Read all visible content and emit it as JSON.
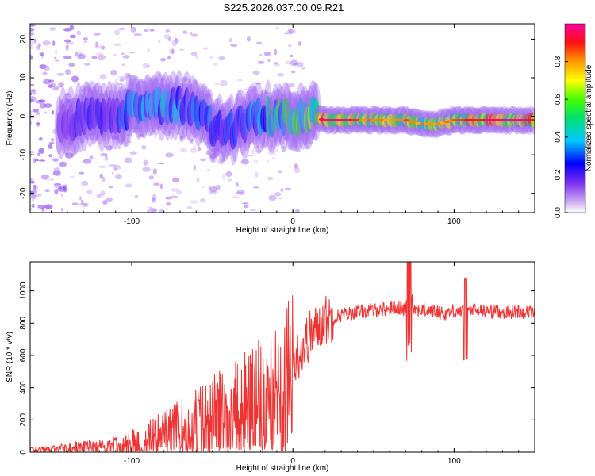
{
  "title": "S225.2026.037.00.09.R21",
  "chart_data": [
    {
      "type": "heatmap",
      "xlabel": "Height of straight line (km)",
      "ylabel": "Frequency (Hz)",
      "xlim": [
        -163,
        150
      ],
      "ylim": [
        -25,
        24
      ],
      "xticks": [
        -100,
        0,
        100
      ],
      "yticks": [
        -20,
        -10,
        0,
        10,
        20
      ],
      "ridge": [
        {
          "x": -140,
          "y": -2,
          "v": 0.2
        },
        {
          "x": -130,
          "y": 0,
          "v": 0.25
        },
        {
          "x": -120,
          "y": 0,
          "v": 0.3
        },
        {
          "x": -110,
          "y": 0,
          "v": 0.3
        },
        {
          "x": -100,
          "y": 2,
          "v": 0.4
        },
        {
          "x": -90,
          "y": 3,
          "v": 0.4
        },
        {
          "x": -80,
          "y": 3,
          "v": 0.45
        },
        {
          "x": -70,
          "y": 3,
          "v": 0.4
        },
        {
          "x": -60,
          "y": 2,
          "v": 0.35
        },
        {
          "x": -50,
          "y": -3,
          "v": 0.35
        },
        {
          "x": -40,
          "y": -4,
          "v": 0.35
        },
        {
          "x": -30,
          "y": -2,
          "v": 0.35
        },
        {
          "x": -20,
          "y": 0,
          "v": 0.45
        },
        {
          "x": -10,
          "y": 0,
          "v": 0.55
        },
        {
          "x": 0,
          "y": 0,
          "v": 0.6
        },
        {
          "x": 10,
          "y": 0,
          "v": 0.65
        },
        {
          "x": 20,
          "y": -1,
          "v": 0.95
        },
        {
          "x": 30,
          "y": -1,
          "v": 0.95
        },
        {
          "x": 40,
          "y": -1,
          "v": 0.8
        },
        {
          "x": 50,
          "y": -1,
          "v": 0.75
        },
        {
          "x": 60,
          "y": -1,
          "v": 0.75
        },
        {
          "x": 70,
          "y": -1,
          "v": 0.8
        },
        {
          "x": 80,
          "y": -2,
          "v": 0.75
        },
        {
          "x": 90,
          "y": -2,
          "v": 0.75
        },
        {
          "x": 100,
          "y": -1,
          "v": 0.8
        },
        {
          "x": 110,
          "y": -1,
          "v": 0.85
        },
        {
          "x": 120,
          "y": -1,
          "v": 0.9
        },
        {
          "x": 130,
          "y": -1,
          "v": 0.95
        },
        {
          "x": 140,
          "y": -1,
          "v": 0.95
        },
        {
          "x": 150,
          "y": -1,
          "v": 0.9
        }
      ]
    },
    {
      "type": "line",
      "xlabel": "Height of straight line (km)",
      "ylabel": "SNR (10 * v/v)",
      "xlim": [
        -163,
        150
      ],
      "ylim": [
        0,
        1180
      ],
      "xticks": [
        -100,
        0,
        100
      ],
      "yticks": [
        0,
        200,
        400,
        600,
        800,
        1000
      ],
      "color": "#ee3333",
      "series": [
        {
          "name": "SNR",
          "x": [
            -163,
            -150,
            -140,
            -130,
            -120,
            -110,
            -100,
            -90,
            -80,
            -70,
            -60,
            -50,
            -40,
            -30,
            -20,
            -10,
            0,
            10,
            20,
            30,
            40,
            50,
            60,
            65,
            70,
            72,
            75,
            80,
            90,
            95,
            100,
            105,
            110,
            120,
            130,
            140,
            150
          ],
          "y": [
            20,
            25,
            35,
            45,
            55,
            60,
            80,
            110,
            140,
            180,
            220,
            260,
            300,
            340,
            380,
            430,
            550,
            720,
            820,
            850,
            870,
            880,
            890,
            900,
            880,
            1100,
            890,
            880,
            870,
            860,
            880,
            870,
            880,
            875,
            870,
            870,
            870
          ]
        }
      ]
    }
  ],
  "colorbar": {
    "label": "Normalized spectral amplitude",
    "ticks": [
      "0.0",
      "0.2",
      "0.4",
      "0.6",
      "0.8"
    ]
  }
}
